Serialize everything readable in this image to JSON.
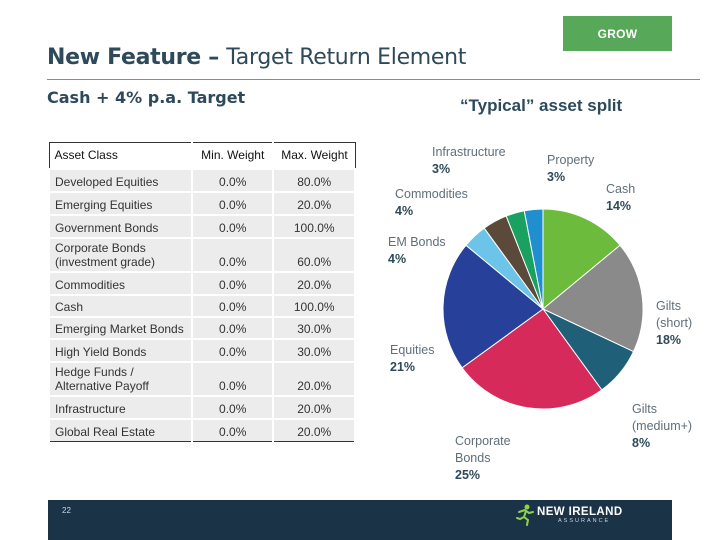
{
  "badge": {
    "label": "GROW"
  },
  "header": {
    "title_bold": "New Feature – ",
    "title_rest": "Target Return Element",
    "subtitle": "Cash + 4% p.a. Target"
  },
  "asset_split": {
    "title": "“Typical” asset split"
  },
  "table": {
    "headers": [
      "Asset Class",
      "Min. Weight",
      "Max. Weight"
    ],
    "rows": [
      {
        "asset": "Developed Equities",
        "min": "0.0%",
        "max": "80.0%"
      },
      {
        "asset": "Emerging Equities",
        "min": "0.0%",
        "max": "20.0%"
      },
      {
        "asset": "Government Bonds",
        "min": "0.0%",
        "max": "100.0%"
      },
      {
        "asset": "Corporate Bonds",
        "asset2": "(investment grade)",
        "min": "0.0%",
        "max": "60.0%"
      },
      {
        "asset": "Commodities",
        "min": "0.0%",
        "max": "20.0%"
      },
      {
        "asset": "Cash",
        "min": "0.0%",
        "max": "100.0%"
      },
      {
        "asset": "Emerging Market Bonds",
        "min": "0.0%",
        "max": "30.0%"
      },
      {
        "asset": "High Yield Bonds",
        "min": "0.0%",
        "max": "30.0%"
      },
      {
        "asset": "Hedge Funds /",
        "asset2": "Alternative Payoff",
        "min": "0.0%",
        "max": "20.0%"
      },
      {
        "asset": "Infrastructure",
        "min": "0.0%",
        "max": "20.0%"
      },
      {
        "asset": "Global Real Estate",
        "min": "0.0%",
        "max": "20.0%"
      }
    ]
  },
  "chart_data": {
    "type": "pie",
    "title": "“Typical” asset split",
    "slices": [
      {
        "label": "Cash",
        "value": 14,
        "pct_label": "14%",
        "color": "#6dbb3c"
      },
      {
        "label": "Gilts",
        "label2": "(short)",
        "value": 18,
        "pct_label": "18%",
        "color": "#8a8a8a"
      },
      {
        "label": "Gilts",
        "label2": "(medium+)",
        "value": 8,
        "pct_label": "8%",
        "color": "#1f5f78"
      },
      {
        "label": "Corporate",
        "label2": "Bonds",
        "value": 25,
        "pct_label": "25%",
        "color": "#d62b5a"
      },
      {
        "label": "Equities",
        "value": 21,
        "pct_label": "21%",
        "color": "#27409a"
      },
      {
        "label": "EM Bonds",
        "value": 4,
        "pct_label": "4%",
        "color": "#6cc4e8"
      },
      {
        "label": "Commodities",
        "value": 4,
        "pct_label": "4%",
        "color": "#5b4a3a"
      },
      {
        "label": "Infrastructure",
        "value": 3,
        "pct_label": "3%",
        "color": "#1aa061"
      },
      {
        "label": "Property",
        "value": 3,
        "pct_label": "3%",
        "color": "#1f8fcf"
      }
    ]
  },
  "footer": {
    "page_number": "22",
    "logo_main": "NEW IRELAND",
    "logo_sub": "ASSURANCE"
  }
}
